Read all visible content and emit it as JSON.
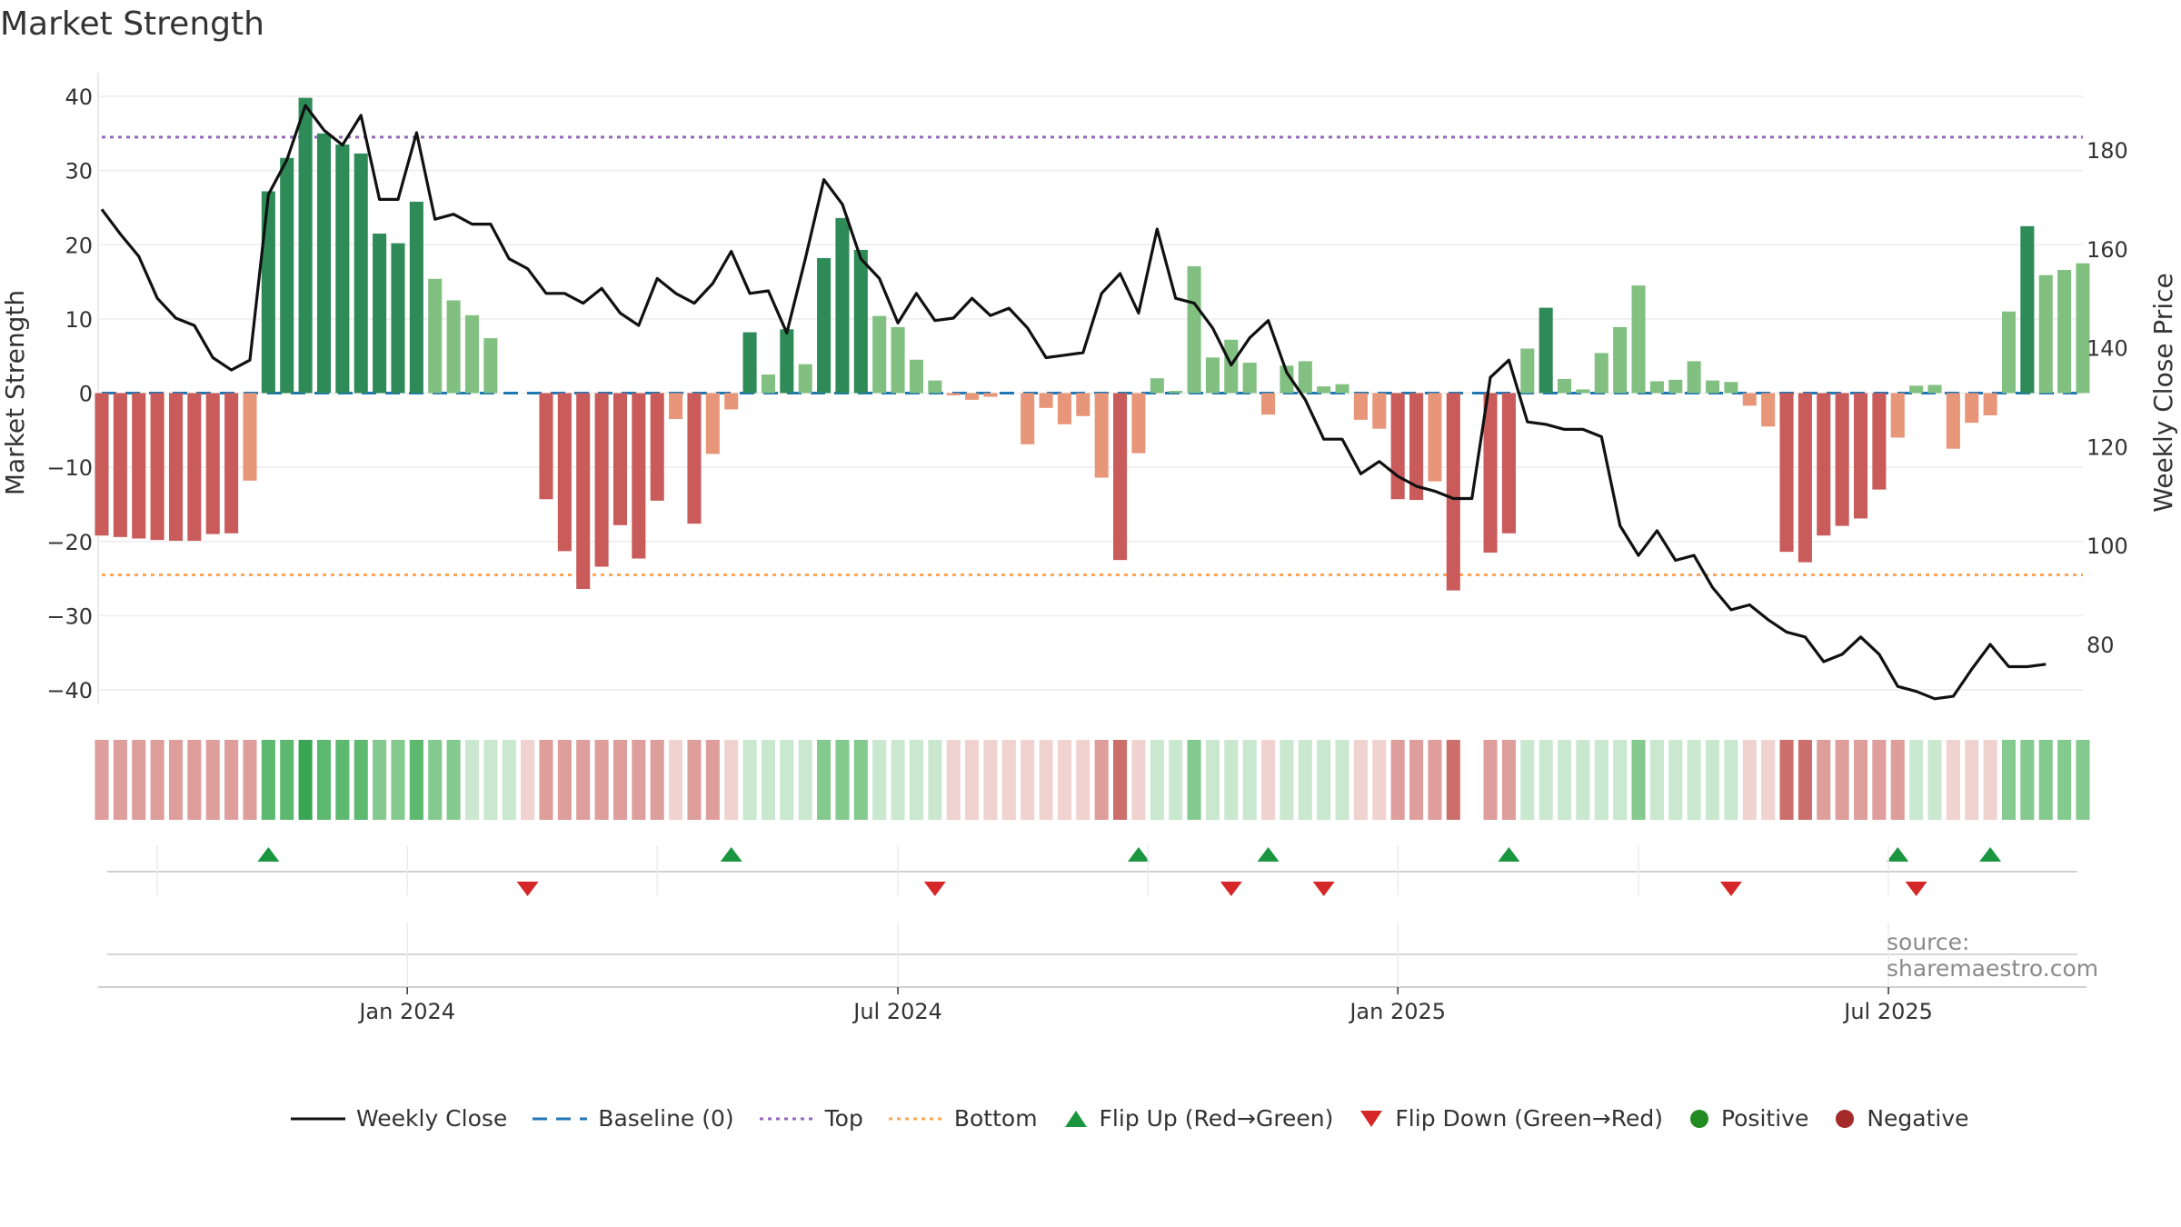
{
  "title": "Market Strength",
  "source": "source: sharemaestro.com",
  "chart_data": {
    "type": "bar",
    "title": "Market Strength",
    "ylabel": "Market Strength",
    "y2label": "Weekly Close Price",
    "ylim": [
      -45,
      42
    ],
    "y2lim": [
      63,
      193
    ],
    "yticks": [
      "40",
      "30",
      "20",
      "10",
      "0",
      "−10",
      "−20",
      "−30",
      "−40"
    ],
    "y2ticks": [
      "180",
      "160",
      "140",
      "120",
      "100",
      "80"
    ],
    "xticks": [
      "Jan 2024",
      "Jul 2024",
      "Jan 2025",
      "Jul 2025"
    ],
    "top_level": 34.5,
    "bottom_level": -24.5,
    "baseline": 0,
    "grid": true,
    "legend_position": "bottom",
    "strength": [
      -19.2,
      -19.4,
      -19.6,
      -19.8,
      -19.9,
      -19.9,
      -19,
      -18.9,
      -11.8,
      27.2,
      31.7,
      39.8,
      35,
      33.5,
      32.3,
      21.5,
      20.2,
      25.8,
      15.4,
      12.5,
      10.5,
      7.4,
      0,
      0,
      -14.3,
      -21.3,
      -26.4,
      -23.4,
      -17.8,
      -22.3,
      -14.5,
      -3.5,
      -17.6,
      -8.2,
      -2.2,
      8.2,
      2.5,
      8.6,
      3.9,
      18.2,
      23.6,
      19.3,
      10.4,
      8.9,
      4.5,
      1.7,
      -0.3,
      -0.9,
      -0.5,
      0,
      -6.9,
      -2,
      -4.2,
      -3.1,
      -11.4,
      -22.5,
      -8.1,
      2,
      0.3,
      17.1,
      4.8,
      7.2,
      4.1,
      -2.9,
      3.7,
      4.3,
      0.9,
      1.2,
      -3.6,
      -4.8,
      -14.3,
      -14.4,
      -11.9,
      -26.6,
      0,
      -21.5,
      -18.9,
      6,
      11.5,
      1.9,
      0.5,
      5.4,
      8.9,
      14.5,
      1.6,
      1.8,
      4.3,
      1.7,
      1.5,
      -1.7,
      -4.5,
      -21.4,
      -22.8,
      -19.2,
      -17.9,
      -16.9,
      -13,
      -6,
      1,
      1.1,
      -7.5,
      -4,
      -3,
      11,
      22.5,
      15.9,
      16.6,
      17.5
    ],
    "weekly_close": [
      168,
      163,
      158.5,
      150,
      146,
      144.5,
      138,
      135.5,
      137.5,
      171,
      178,
      189,
      184,
      181,
      187,
      170,
      170,
      183.5,
      166,
      167,
      165,
      165,
      158,
      156,
      151,
      151,
      149,
      152,
      147,
      144.5,
      154,
      151,
      149,
      153,
      159.5,
      151,
      151.5,
      143,
      158,
      174,
      169,
      158,
      154,
      145,
      151,
      145.5,
      146,
      150,
      146.5,
      148,
      144,
      138,
      138.5,
      139,
      151,
      155,
      147,
      164,
      150,
      149,
      144,
      136.5,
      142,
      145.5,
      135,
      129.5,
      121.5,
      121.5,
      114.5,
      117,
      114,
      112,
      111,
      109.5,
      109.5,
      134,
      137.5,
      125,
      124.5,
      123.5,
      123.5,
      122,
      104,
      98,
      103,
      97,
      98,
      91.5,
      87,
      88,
      85,
      82.5,
      81.5,
      76.5,
      78,
      81.5,
      78,
      71.5,
      70.5,
      69,
      69.5,
      75,
      80,
      75.5,
      75.5,
      76
    ],
    "regime": [
      -2,
      -2,
      -2,
      -2,
      -2,
      -2,
      -2,
      -2,
      -2,
      3,
      3,
      4,
      3,
      3,
      3,
      2,
      2,
      3,
      2,
      2,
      1,
      1,
      1,
      -1,
      -2,
      -2,
      -2,
      -2,
      -2,
      -2,
      -2,
      -1,
      -2,
      -2,
      -1,
      1,
      1,
      1,
      1,
      2,
      2,
      2,
      1,
      1,
      1,
      1,
      -1,
      -1,
      -1,
      -1,
      -1,
      -1,
      -1,
      -1,
      -2,
      -3,
      -1,
      1,
      1,
      2,
      1,
      1,
      1,
      -1,
      1,
      1,
      1,
      1,
      -1,
      -1,
      -2,
      -2,
      -2,
      -3,
      null,
      -2,
      -2,
      1,
      1,
      1,
      1,
      1,
      1,
      2,
      1,
      1,
      1,
      1,
      1,
      -1,
      -1,
      -3,
      -3,
      -2,
      -2,
      -2,
      -2,
      -2,
      1,
      1,
      -1,
      -1,
      -1,
      2,
      2,
      2,
      2,
      2
    ],
    "flip_up_weeks": [
      9,
      34,
      56,
      63,
      76,
      97,
      102
    ],
    "flip_down_weeks": [
      23,
      45,
      61,
      66,
      88,
      98
    ],
    "legend": [
      "Weekly Close",
      "Baseline (0)",
      "Top",
      "Bottom",
      "Flip Up (Red→Green)",
      "Flip Down (Green→Red)",
      "Positive",
      "Negative"
    ],
    "colors": {
      "pos_strong": "#2e8b57",
      "pos_light": "#82c082",
      "neg_strong": "#c95b5b",
      "neg_light": "#e8967a",
      "line": "#111111",
      "baseline": "#1f77b4",
      "top": "#9467bd",
      "bottom": "#ff7f0e",
      "flip_up": "#1a9641",
      "flip_down": "#d62728",
      "positive_dot": "#228b22",
      "negative_dot": "#a52a2a"
    }
  }
}
